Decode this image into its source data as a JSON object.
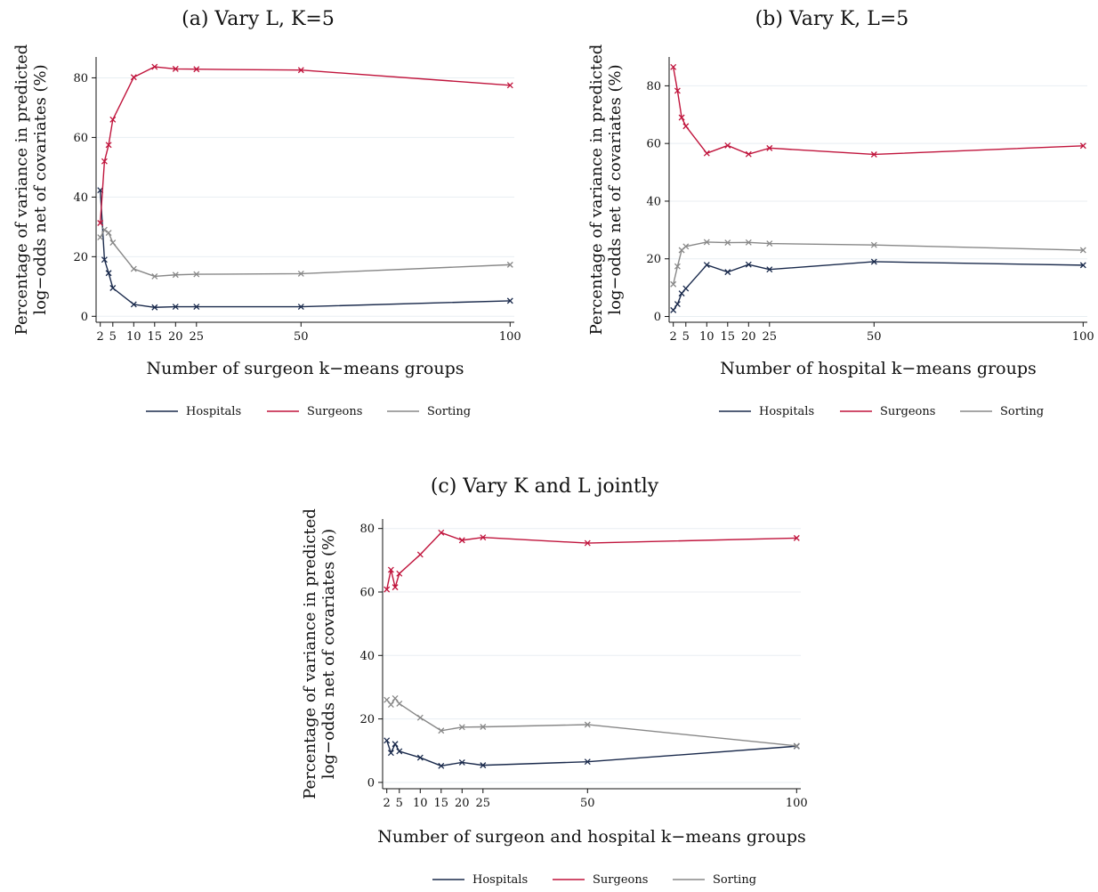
{
  "colors": {
    "Hospitals": "#1a2a4c",
    "Surgeons": "#c0143c",
    "Sorting": "#888888",
    "grid": "#e8eef2",
    "axis": "#111111"
  },
  "chart_data": [
    {
      "type": "line",
      "title": "(a) Vary L, K=5",
      "xlabel": "Number of surgeon k−means groups",
      "ylabel": [
        "Percentage of variance in predicted",
        "log−odds net of covariates (%)"
      ],
      "xlim": [
        1,
        101
      ],
      "ylim": [
        -2,
        87
      ],
      "x_ticks": [
        2,
        5,
        10,
        15,
        20,
        25,
        50,
        100
      ],
      "y_ticks": [
        0,
        20,
        40,
        60,
        80
      ],
      "grid": true,
      "legend_position": "bottom",
      "x": [
        2,
        3,
        4,
        5,
        10,
        15,
        20,
        25,
        50,
        100
      ],
      "series": [
        {
          "name": "Hospitals",
          "marker": "x",
          "values": [
            42.3,
            19.0,
            14.5,
            9.5,
            4.0,
            3.0,
            3.2,
            3.2,
            3.2,
            5.2
          ]
        },
        {
          "name": "Surgeons",
          "marker": "x",
          "values": [
            31.3,
            52.0,
            57.5,
            66.0,
            80.2,
            83.7,
            83.0,
            82.9,
            82.6,
            77.5
          ]
        },
        {
          "name": "Sorting",
          "marker": "x",
          "values": [
            26.5,
            29.0,
            28.0,
            24.7,
            15.9,
            13.4,
            13.9,
            14.1,
            14.3,
            17.3
          ]
        }
      ]
    },
    {
      "type": "line",
      "title": "(b) Vary K, L=5",
      "xlabel": "Number of hospital k−means groups",
      "ylabel": [
        "Percentage of variance in predicted",
        "log−odds net of covariates (%)"
      ],
      "xlim": [
        1,
        101
      ],
      "ylim": [
        -2,
        90
      ],
      "x_ticks": [
        2,
        5,
        10,
        15,
        20,
        25,
        50,
        100
      ],
      "y_ticks": [
        0,
        20,
        40,
        60,
        80
      ],
      "grid": true,
      "legend_position": "bottom",
      "x": [
        2,
        3,
        4,
        5,
        10,
        15,
        20,
        25,
        50,
        100
      ],
      "series": [
        {
          "name": "Hospitals",
          "marker": "x",
          "values": [
            2.2,
            4.3,
            8.0,
            9.7,
            17.9,
            15.4,
            18.0,
            16.3,
            19.0,
            17.8
          ]
        },
        {
          "name": "Surgeons",
          "marker": "x",
          "values": [
            86.5,
            78.3,
            69.0,
            66.0,
            56.6,
            59.3,
            56.3,
            58.4,
            56.2,
            59.2
          ]
        },
        {
          "name": "Sorting",
          "marker": "x",
          "values": [
            11.2,
            17.4,
            23.0,
            24.3,
            25.8,
            25.6,
            25.7,
            25.3,
            24.8,
            23.0
          ]
        }
      ]
    },
    {
      "type": "line",
      "title": "(c) Vary K and L jointly",
      "xlabel": "Number of surgeon and hospital k−means groups",
      "ylabel": [
        "Percentage of variance in predicted",
        "log−odds net of covariates (%)"
      ],
      "xlim": [
        1,
        101
      ],
      "ylim": [
        -2,
        83
      ],
      "x_ticks": [
        2,
        5,
        10,
        15,
        20,
        25,
        50,
        100
      ],
      "y_ticks": [
        0,
        20,
        40,
        60,
        80
      ],
      "grid": true,
      "legend_position": "bottom",
      "x": [
        2,
        3,
        4,
        5,
        10,
        15,
        20,
        25,
        50,
        100
      ],
      "series": [
        {
          "name": "Hospitals",
          "marker": "x",
          "values": [
            13.2,
            9.3,
            12.1,
            9.8,
            7.8,
            5.2,
            6.3,
            5.4,
            6.5,
            11.4
          ]
        },
        {
          "name": "Surgeons",
          "marker": "x",
          "values": [
            60.8,
            67.0,
            61.5,
            65.8,
            71.8,
            78.7,
            76.3,
            77.2,
            75.4,
            77.0
          ]
        },
        {
          "name": "Sorting",
          "marker": "x",
          "values": [
            26.0,
            24.5,
            26.5,
            24.8,
            20.4,
            16.3,
            17.4,
            17.5,
            18.2,
            11.5
          ]
        }
      ]
    }
  ]
}
